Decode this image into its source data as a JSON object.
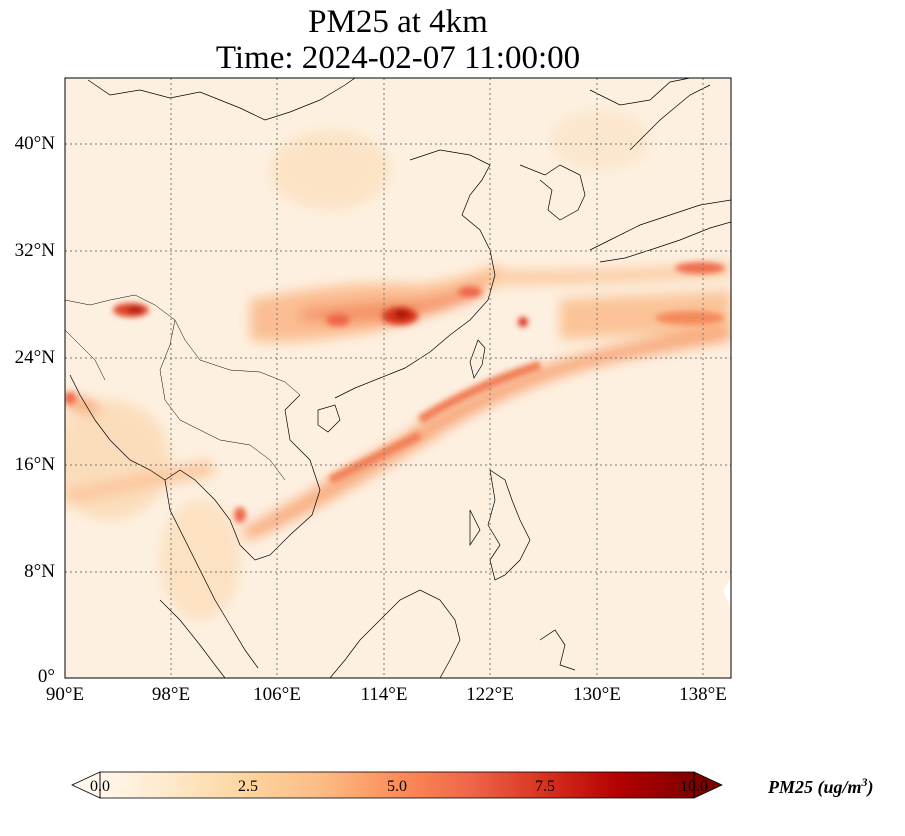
{
  "title_line1": "PM25 at 4km",
  "title_line2": "Time: 2024-02-07 11:00:00",
  "lat_labels": [
    "40°N",
    "32°N",
    "24°N",
    "16°N",
    "8°N",
    "0°"
  ],
  "lon_labels": [
    "90°E",
    "98°E",
    "106°E",
    "114°E",
    "122°E",
    "130°E",
    "138°E"
  ],
  "colorbar": {
    "ticks": [
      "0.0",
      "2.5",
      "5.0",
      "7.5",
      "10.0"
    ],
    "label": "PM25 (ug/m",
    "label_superscript": "3",
    "label_close": ")",
    "colormap": "OrRd",
    "range": [
      0,
      10
    ],
    "extend": "both"
  },
  "gridlines": true,
  "colors": {
    "low": "#fff7ec",
    "mid": "#fc8d59",
    "high": "#7f0000",
    "coast": "#000000"
  }
}
